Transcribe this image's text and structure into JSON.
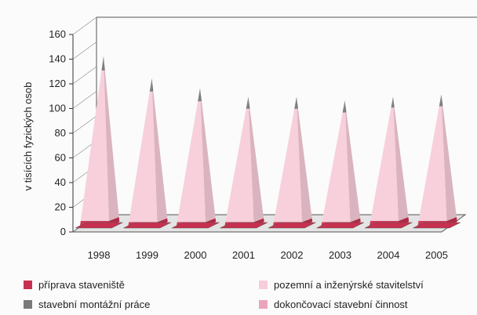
{
  "chart_data": {
    "type": "bar",
    "title": "",
    "xlabel": "",
    "ylabel": "v tisících fyzických osob",
    "ylim": [
      0,
      160
    ],
    "yticks": [
      0,
      20,
      40,
      60,
      80,
      100,
      120,
      140,
      160
    ],
    "categories": [
      "1998",
      "1999",
      "2000",
      "2001",
      "2002",
      "2003",
      "2004",
      "2005"
    ],
    "stacked": true,
    "three_d": true,
    "grid": false,
    "legend_position": "bottom",
    "series": [
      {
        "name": "příprava staveniště",
        "color": "#c8304f",
        "values": [
          4,
          3,
          3,
          3,
          3,
          3,
          4,
          4
        ]
      },
      {
        "name": "pozemní a inženýrské stavitelství",
        "color": "#f7cdd9",
        "values": [
          124,
          108,
          100,
          94,
          94,
          91,
          94,
          95
        ]
      },
      {
        "name": "stavební montážní práce",
        "color": "#7a7a7a",
        "values": [
          12,
          11,
          11,
          10,
          10,
          10,
          9,
          10
        ]
      },
      {
        "name": "dokončovací stavební činnost",
        "color": "#eaa5bd",
        "values": [
          0,
          0,
          0,
          0,
          0,
          0,
          0,
          0
        ]
      }
    ]
  }
}
